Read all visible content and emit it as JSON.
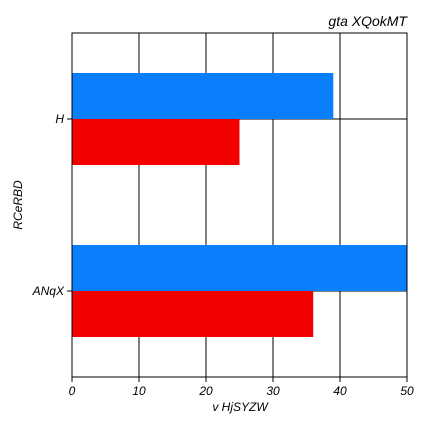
{
  "chart_data": {
    "type": "bar",
    "orientation": "horizontal",
    "title": "gta XQokMT",
    "xlabel": "v HjSYZW",
    "ylabel": "RCeRBD",
    "categories": [
      "H",
      "ANqX"
    ],
    "series": [
      {
        "color": "#0a7ffb",
        "values": [
          39,
          50
        ]
      },
      {
        "color": "#f20000",
        "values": [
          25,
          36
        ]
      }
    ],
    "xlim": [
      0,
      50
    ],
    "xticks": [
      0,
      10,
      20,
      30,
      40,
      50
    ],
    "grid": true,
    "legend": "none"
  }
}
